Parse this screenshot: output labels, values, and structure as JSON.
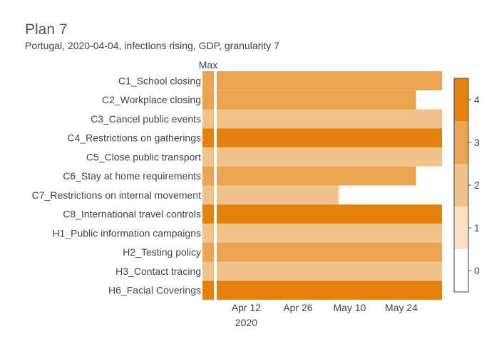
{
  "header": {
    "title": "Plan 7",
    "subtitle": "Portugal, 2020-04-04, infections rising, GDP, granularity 7"
  },
  "chart_data": {
    "type": "heatmap",
    "max_column_label": "Max",
    "categories": [
      "C1_School closing",
      "C2_Workplace closing",
      "C3_Cancel public events",
      "C4_Restrictions on gatherings",
      "C5_Close public transport",
      "C6_Stay at home requirements",
      "C7_Restrictions on internal movement",
      "C8_International travel controls",
      "H1_Public information campaigns",
      "H2_Testing policy",
      "H3_Contact tracing",
      "H6_Facial Coverings"
    ],
    "max_values": [
      3,
      3,
      2,
      4,
      2,
      3,
      2,
      4,
      2,
      3,
      2,
      4
    ],
    "plan": [
      {
        "value": 3,
        "end": "2020-06-04"
      },
      {
        "value": 3,
        "end": "2020-05-28"
      },
      {
        "value": 2,
        "end": "2020-06-04"
      },
      {
        "value": 4,
        "end": "2020-06-04"
      },
      {
        "value": 2,
        "end": "2020-06-04"
      },
      {
        "value": 3,
        "end": "2020-05-28"
      },
      {
        "value": 2,
        "end": "2020-05-07"
      },
      {
        "value": 4,
        "end": "2020-06-04"
      },
      {
        "value": 2,
        "end": "2020-06-04"
      },
      {
        "value": 3,
        "end": "2020-06-04"
      },
      {
        "value": 2,
        "end": "2020-06-04"
      },
      {
        "value": 4,
        "end": "2020-06-04"
      }
    ],
    "plan_start": "2020-04-04",
    "x_ticks": [
      {
        "date": "2020-04-12",
        "label": "Apr 12",
        "sublabel": "2020"
      },
      {
        "date": "2020-04-26",
        "label": "Apr 26",
        "sublabel": ""
      },
      {
        "date": "2020-05-10",
        "label": "May 10",
        "sublabel": ""
      },
      {
        "date": "2020-05-24",
        "label": "May 24",
        "sublabel": ""
      }
    ],
    "x_range": [
      "2020-04-04",
      "2020-06-04"
    ],
    "colorbar": {
      "min": -0.5,
      "max": 4.5,
      "ticks": [
        "0",
        "1",
        "2",
        "3",
        "4"
      ],
      "colors": [
        "#ffffff",
        "#fbe0c3",
        "#f2c28c",
        "#eca452",
        "#e5820f"
      ]
    }
  }
}
